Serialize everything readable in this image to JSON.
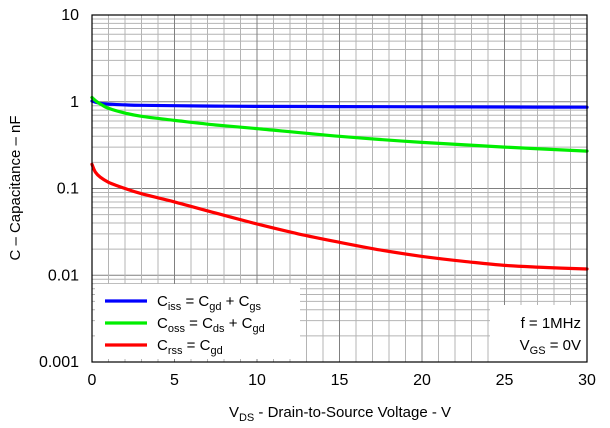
{
  "chart_data": {
    "type": "line",
    "xlabel": {
      "main": "V",
      "sub": "DS",
      "rest": " - Drain-to-Source Voltage - V"
    },
    "ylabel": "C – Capacitance – nF",
    "xlim": [
      0,
      30
    ],
    "ylim": [
      0.001,
      10
    ],
    "yscale": "log",
    "grid": true,
    "x_ticks": [
      "0",
      "5",
      "10",
      "15",
      "20",
      "25",
      "30"
    ],
    "y_ticks": [
      "0.001",
      "0.01",
      "0.1",
      "1",
      "10"
    ],
    "legend_position": "bottom-left",
    "series": [
      {
        "key": "ciss",
        "color": "#0000ff",
        "legend": [
          {
            "t": "C"
          },
          {
            "t": "iss",
            "sub": true
          },
          {
            "t": " = C"
          },
          {
            "t": "gd",
            "sub": true
          },
          {
            "t": " + C"
          },
          {
            "t": "gs",
            "sub": true
          }
        ],
        "x": [
          0,
          0.5,
          1,
          2,
          3,
          5,
          7.5,
          10,
          15,
          20,
          25,
          30
        ],
        "y": [
          1.02,
          0.96,
          0.94,
          0.92,
          0.91,
          0.9,
          0.89,
          0.885,
          0.88,
          0.875,
          0.87,
          0.865
        ]
      },
      {
        "key": "coss",
        "color": "#00ee00",
        "legend": [
          {
            "t": "C"
          },
          {
            "t": "oss",
            "sub": true
          },
          {
            "t": " = C"
          },
          {
            "t": "ds",
            "sub": true
          },
          {
            "t": " + C"
          },
          {
            "t": "gd",
            "sub": true
          }
        ],
        "x": [
          0,
          0.3,
          0.6,
          1,
          2,
          3,
          5,
          7.5,
          10,
          15,
          20,
          25,
          30
        ],
        "y": [
          1.12,
          1.0,
          0.92,
          0.84,
          0.74,
          0.68,
          0.61,
          0.54,
          0.49,
          0.4,
          0.34,
          0.3,
          0.27
        ]
      },
      {
        "key": "crss",
        "color": "#ff0000",
        "legend": [
          {
            "t": "C"
          },
          {
            "t": "rss",
            "sub": true
          },
          {
            "t": " =  C"
          },
          {
            "t": "gd",
            "sub": true
          }
        ],
        "x": [
          0,
          0.2,
          0.5,
          1,
          1.5,
          2,
          3,
          5,
          7.5,
          10,
          12.5,
          15,
          17.5,
          20,
          22.5,
          25,
          27.5,
          30
        ],
        "y": [
          0.19,
          0.155,
          0.135,
          0.118,
          0.108,
          0.1,
          0.087,
          0.07,
          0.052,
          0.039,
          0.03,
          0.024,
          0.0195,
          0.0165,
          0.0145,
          0.013,
          0.0123,
          0.0118
        ]
      }
    ],
    "annotations": [
      {
        "parts": [
          {
            "t": "f = 1MHz"
          }
        ]
      },
      {
        "parts": [
          {
            "t": "V"
          },
          {
            "t": "GS",
            "sub": true
          },
          {
            "t": " = 0V"
          }
        ]
      }
    ]
  }
}
